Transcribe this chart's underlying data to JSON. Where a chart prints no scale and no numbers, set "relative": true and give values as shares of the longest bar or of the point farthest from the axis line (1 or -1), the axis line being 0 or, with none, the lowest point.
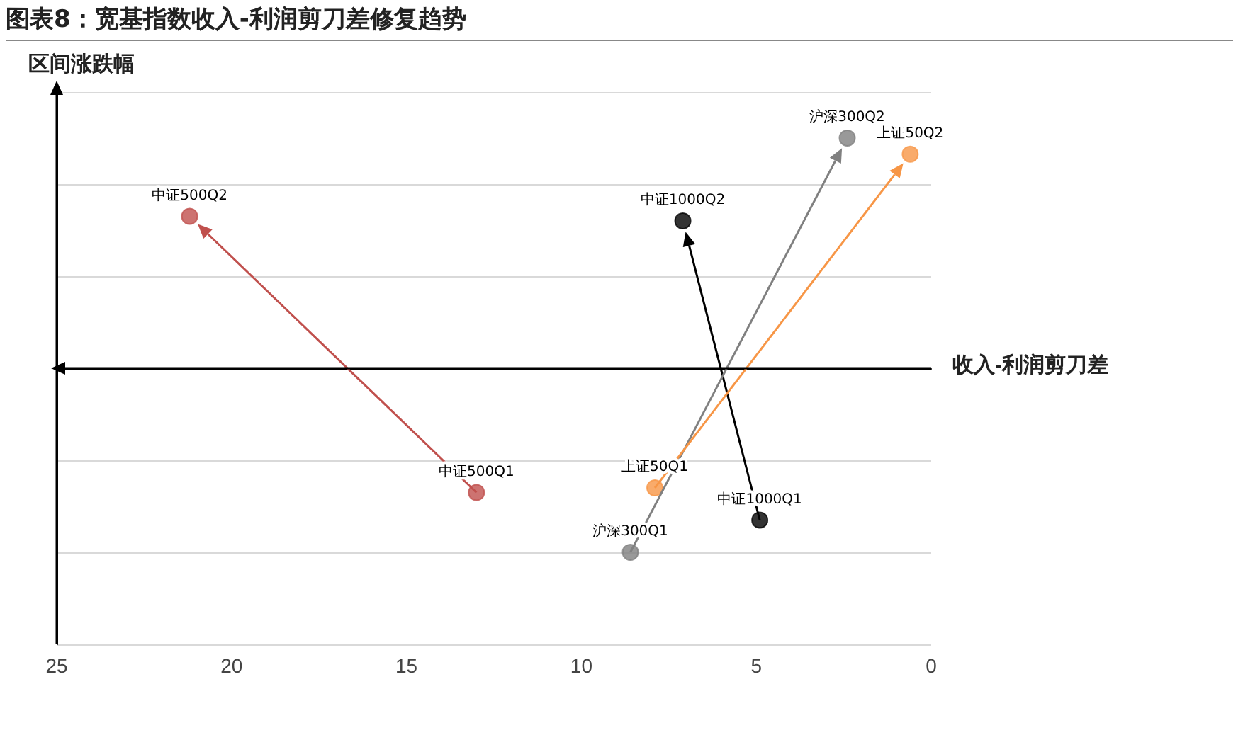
{
  "chart_data": {
    "type": "scatter",
    "title": "图表8：宽基指数收入-利润剪刀差修复趋势",
    "xlabel": "收入-利润剪刀差",
    "ylabel": "区间涨跌幅",
    "relative": true,
    "xlim": [
      25,
      0
    ],
    "xticks": [
      25,
      20,
      15,
      10,
      5,
      0
    ],
    "tick_labels": "x",
    "grid": "y",
    "marker": "circle",
    "series": [
      {
        "color": "#c0504d",
        "x": [
          13.0,
          21.2
        ],
        "values": [
          -0.54,
          0.66
        ]
      },
      {
        "color": "#000000",
        "x": [
          4.9,
          7.1
        ],
        "values": [
          -0.66,
          0.64
        ]
      },
      {
        "color": "#808080",
        "x": [
          8.6,
          2.4
        ],
        "values": [
          -0.8,
          1
        ]
      },
      {
        "color": "#f79646",
        "x": [
          7.9,
          0.6
        ],
        "values": [
          -0.52,
          0.93
        ]
      }
    ],
    "annotations": [
      {
        "text": "中证500Q1",
        "x": 13.0,
        "y": -0.54
      },
      {
        "text": "中证500Q2",
        "x": 21.2,
        "y": 0.66
      },
      {
        "text": "中证1000Q1",
        "x": 4.9,
        "y": -0.66
      },
      {
        "text": "中证1000Q2",
        "x": 7.1,
        "y": 0.64
      },
      {
        "text": "沪深300Q1",
        "x": 8.6,
        "y": -0.8
      },
      {
        "text": "沪深300Q2",
        "x": 2.4,
        "y": 1
      },
      {
        "text": "上证50Q1",
        "x": 7.9,
        "y": -0.52
      },
      {
        "text": "上证50Q2",
        "x": 0.6,
        "y": 0.93
      }
    ]
  }
}
